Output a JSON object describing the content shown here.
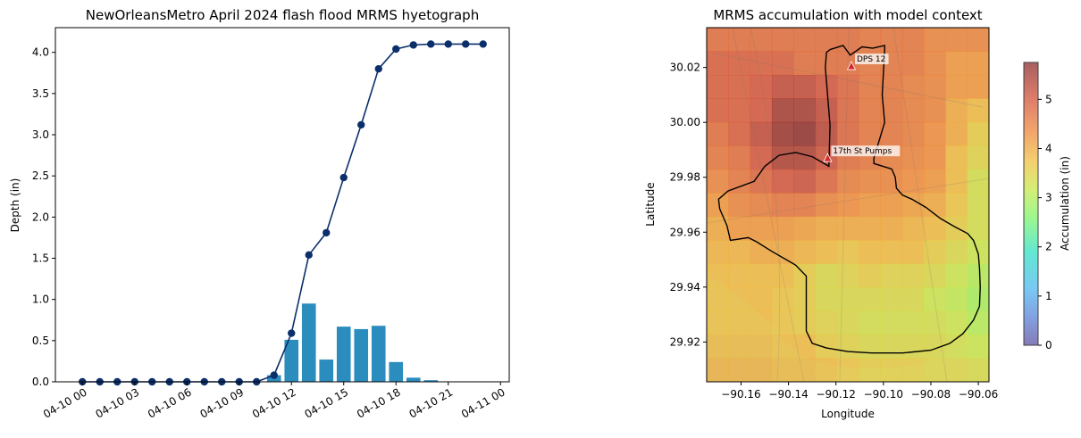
{
  "chart_data": [
    {
      "type": "bar+line",
      "title": "NewOrleansMetro April 2024 flash flood MRMS hyetograph",
      "ylabel": "Depth (in)",
      "xlabel": "",
      "ylim": [
        0,
        4.3
      ],
      "yticks": [
        "0.0",
        "0.5",
        "1.0",
        "1.5",
        "2.0",
        "2.5",
        "3.0",
        "3.5",
        "4.0"
      ],
      "xticks": [
        "04-10 00",
        "04-10 03",
        "04-10 06",
        "04-10 09",
        "04-10 12",
        "04-10 15",
        "04-10 18",
        "04-10 21",
        "04-11 00"
      ],
      "x_hours": [
        0,
        1,
        2,
        3,
        4,
        5,
        6,
        7,
        8,
        9,
        10,
        11,
        12,
        13,
        14,
        15,
        16,
        17,
        18,
        19,
        20,
        21,
        22,
        23
      ],
      "series": [
        {
          "kind": "bar",
          "color": "#2b8cbe",
          "values": [
            0,
            0,
            0,
            0,
            0,
            0,
            0,
            0,
            0,
            0,
            0,
            0.08,
            0.51,
            0.95,
            0.27,
            0.67,
            0.64,
            0.68,
            0.24,
            0.05,
            0.02,
            0,
            0,
            0
          ]
        },
        {
          "kind": "line",
          "color": "#0b2f6b",
          "values": [
            0,
            0,
            0,
            0,
            0,
            0,
            0,
            0,
            0,
            0,
            0,
            0.08,
            0.59,
            1.54,
            1.81,
            2.48,
            3.12,
            3.8,
            4.04,
            4.09,
            4.1,
            4.1,
            4.1,
            4.1
          ]
        }
      ],
      "grid": false
    },
    {
      "type": "heatmap",
      "title": "MRMS accumulation with model context",
      "xlabel": "Longitude",
      "ylabel": "Latitude",
      "xlim": [
        -90.1745,
        -90.0555
      ],
      "ylim": [
        29.9055,
        30.0345
      ],
      "xticks": [
        "−90.16",
        "−90.14",
        "−90.12",
        "−90.10",
        "−90.08",
        "−90.06"
      ],
      "yticks": [
        "29.92",
        "29.94",
        "29.96",
        "29.98",
        "30.00",
        "30.02"
      ],
      "colorbar": {
        "label": "Accumulation (in)",
        "range": [
          0,
          5.75
        ],
        "ticks": [
          "0",
          "1",
          "2",
          "3",
          "4",
          "5"
        ]
      },
      "grid_values": [
        [
          4.7,
          4.7,
          4.7,
          4.7,
          4.7,
          4.7,
          4.7,
          4.6,
          4.6,
          4.6,
          4.4,
          4.4,
          4.4
        ],
        [
          4.9,
          4.9,
          4.9,
          4.9,
          4.7,
          4.7,
          4.7,
          4.6,
          4.6,
          4.6,
          4.4,
          4.2,
          4.2
        ],
        [
          4.9,
          4.9,
          5.0,
          5.2,
          5.2,
          5.0,
          4.8,
          4.6,
          4.6,
          4.5,
          4.4,
          4.2,
          4.2
        ],
        [
          4.9,
          4.9,
          5.0,
          5.5,
          5.5,
          5.2,
          4.8,
          4.6,
          4.6,
          4.5,
          4.4,
          4.0,
          3.8
        ],
        [
          4.7,
          4.9,
          5.2,
          5.6,
          5.7,
          5.3,
          4.8,
          4.6,
          4.6,
          4.5,
          4.3,
          4.0,
          3.6
        ],
        [
          4.6,
          4.7,
          5.0,
          5.4,
          5.4,
          5.1,
          4.7,
          4.6,
          4.5,
          4.4,
          4.3,
          3.8,
          3.5
        ],
        [
          4.4,
          4.6,
          4.8,
          5.0,
          5.1,
          4.8,
          4.5,
          4.4,
          4.4,
          4.3,
          4.2,
          3.8,
          3.3
        ],
        [
          4.2,
          4.4,
          4.5,
          4.6,
          4.6,
          4.4,
          4.3,
          4.2,
          4.2,
          4.1,
          4.0,
          3.7,
          3.3
        ],
        [
          4.0,
          4.2,
          4.2,
          4.2,
          4.1,
          4.0,
          4.0,
          4.0,
          4.0,
          3.9,
          3.8,
          3.6,
          3.3
        ],
        [
          3.9,
          3.9,
          4.0,
          4.0,
          3.9,
          3.8,
          3.7,
          3.8,
          3.8,
          3.8,
          3.6,
          3.4,
          3.2
        ],
        [
          3.8,
          3.8,
          3.8,
          3.8,
          3.6,
          3.4,
          3.5,
          3.6,
          3.5,
          3.5,
          3.4,
          3.2,
          3.0
        ],
        [
          3.8,
          3.8,
          3.8,
          3.7,
          3.6,
          3.4,
          3.4,
          3.4,
          3.4,
          3.4,
          3.2,
          3.1,
          2.9
        ],
        [
          3.8,
          3.8,
          3.8,
          3.7,
          3.6,
          3.5,
          3.4,
          3.3,
          3.3,
          3.3,
          3.3,
          3.2,
          3.0
        ],
        [
          3.9,
          3.9,
          3.9,
          3.8,
          3.8,
          3.6,
          3.5,
          3.4,
          3.4,
          3.4,
          3.4,
          3.3,
          3.2
        ],
        [
          4.0,
          4.0,
          4.0,
          3.9,
          3.9,
          3.8,
          3.7,
          3.6,
          3.6,
          3.6,
          3.5,
          3.5,
          3.4
        ]
      ],
      "markers": [
        {
          "label": "DPS 12",
          "lon": -90.1135,
          "lat": 30.0205
        },
        {
          "label": "17th St Pumps",
          "lon": -90.1235,
          "lat": 29.987
        }
      ],
      "boundary_lonlat": [
        [
          -90.1225,
          30.0265
        ],
        [
          -90.117,
          30.028
        ],
        [
          -90.114,
          30.0245
        ],
        [
          -90.109,
          30.0275
        ],
        [
          -90.1045,
          30.027
        ],
        [
          -90.0995,
          30.028
        ],
        [
          -90.0995,
          30.0265
        ],
        [
          -90.1005,
          30.01
        ],
        [
          -90.0995,
          30.0
        ],
        [
          -90.104,
          29.987
        ],
        [
          -90.104,
          29.985
        ],
        [
          -90.0965,
          29.983
        ],
        [
          -90.095,
          29.98
        ],
        [
          -90.0945,
          29.976
        ],
        [
          -90.092,
          29.9735
        ],
        [
          -90.088,
          29.972
        ],
        [
          -90.082,
          29.969
        ],
        [
          -90.076,
          29.965
        ],
        [
          -90.07,
          29.962
        ],
        [
          -90.0645,
          29.9595
        ],
        [
          -90.062,
          29.957
        ],
        [
          -90.06,
          29.952
        ],
        [
          -90.0595,
          29.947
        ],
        [
          -90.0592,
          29.94
        ],
        [
          -90.0595,
          29.933
        ],
        [
          -90.062,
          29.928
        ],
        [
          -90.0665,
          29.923
        ],
        [
          -90.072,
          29.9195
        ],
        [
          -90.08,
          29.917
        ],
        [
          -90.092,
          29.916
        ],
        [
          -90.105,
          29.916
        ],
        [
          -90.115,
          29.9165
        ],
        [
          -90.124,
          29.9178
        ],
        [
          -90.13,
          29.9195
        ],
        [
          -90.1325,
          29.924
        ],
        [
          -90.1325,
          29.944
        ],
        [
          -90.137,
          29.948
        ],
        [
          -90.147,
          29.953
        ],
        [
          -90.1535,
          29.9565
        ],
        [
          -90.157,
          29.958
        ],
        [
          -90.1645,
          29.957
        ],
        [
          -90.166,
          29.9625
        ],
        [
          -90.169,
          29.9685
        ],
        [
          -90.1695,
          29.972
        ],
        [
          -90.1655,
          29.975
        ],
        [
          -90.1545,
          29.9785
        ],
        [
          -90.15,
          29.984
        ],
        [
          -90.144,
          29.988
        ],
        [
          -90.137,
          29.989
        ],
        [
          -90.13,
          29.9875
        ],
        [
          -90.123,
          29.984
        ],
        [
          -90.1225,
          29.999
        ],
        [
          -90.1245,
          30.02
        ],
        [
          -90.124,
          30.0255
        ],
        [
          -90.1225,
          30.0265
        ]
      ]
    }
  ]
}
